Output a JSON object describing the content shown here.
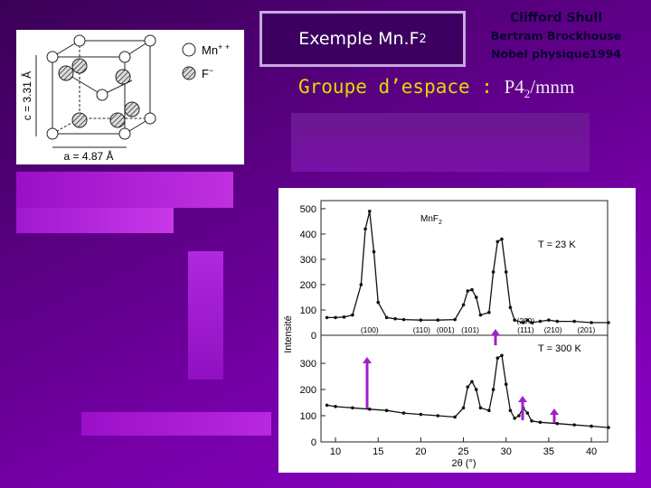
{
  "header": {
    "title_main": "Exemple Mn.F",
    "title_sub": "2",
    "credits": [
      "Clifford Shull",
      "Bertram Brockhouse",
      "Nobel physique1994"
    ],
    "space_group_label": "Groupe d’espace :",
    "space_group": "P4",
    "space_group_sub": "2",
    "space_group_rest": "/mnm"
  },
  "structure_figure": {
    "legend": [
      {
        "symbol": "Mn",
        "sup": "+ +"
      },
      {
        "symbol": "F",
        "sup": "−"
      }
    ],
    "c_label": "c = 3.31 Å",
    "a_label": "a = 4.87 Å"
  },
  "diffraction_figure": {
    "compound": "MnF",
    "compound_sub": "2",
    "y_label": "Intensité",
    "x_label": "2θ (°)",
    "xlim": [
      8.3,
      41.9
    ],
    "xticks": [
      10,
      15,
      20,
      25,
      30,
      35,
      40
    ],
    "panels": [
      {
        "temperature": "T = 23 K",
        "ylim": [
          0,
          532
        ],
        "yticks": [
          0,
          100,
          200,
          300,
          400,
          500
        ],
        "reflections": [
          {
            "label": "(100)",
            "x": 14
          },
          {
            "label": "(110)",
            "x": 20.1
          },
          {
            "label": "(001)",
            "x": 22.9
          },
          {
            "label": "(101)",
            "x": 25.8
          },
          {
            "label": "(111)",
            "x": 32.3
          },
          {
            "label": "(200)",
            "x": 32.3
          },
          {
            "label": "(210)",
            "x": 35.5
          },
          {
            "label": "(201)",
            "x": 39.4
          }
        ],
        "x": [
          9,
          10,
          11,
          12,
          13,
          13.5,
          14,
          14.5,
          15,
          16,
          17,
          18,
          20,
          22,
          24,
          25,
          25.5,
          26,
          26.5,
          27,
          28,
          28.5,
          29,
          29.5,
          30,
          30.5,
          31,
          32,
          32.5,
          33,
          34,
          35,
          36,
          38,
          40,
          42
        ],
        "y": [
          70,
          70,
          72,
          80,
          200,
          420,
          490,
          330,
          130,
          70,
          65,
          62,
          60,
          60,
          62,
          120,
          175,
          180,
          150,
          80,
          90,
          250,
          370,
          380,
          250,
          110,
          60,
          50,
          60,
          50,
          55,
          60,
          55,
          55,
          50,
          50
        ]
      },
      {
        "temperature": "T = 300 K",
        "ylim": [
          0,
          407
        ],
        "yticks": [
          0,
          100,
          200,
          300
        ],
        "reflections": [],
        "x": [
          9,
          10,
          12,
          14,
          16,
          18,
          20,
          22,
          24,
          25,
          25.5,
          26,
          26.5,
          27,
          28,
          28.5,
          29,
          29.5,
          30,
          30.5,
          31,
          31.5,
          32,
          32.5,
          33,
          34,
          36,
          38,
          40,
          42
        ],
        "y": [
          140,
          135,
          130,
          125,
          120,
          110,
          105,
          100,
          95,
          130,
          210,
          230,
          200,
          130,
          120,
          200,
          320,
          330,
          220,
          120,
          90,
          100,
          130,
          110,
          80,
          75,
          70,
          65,
          60,
          55
        ]
      }
    ]
  }
}
